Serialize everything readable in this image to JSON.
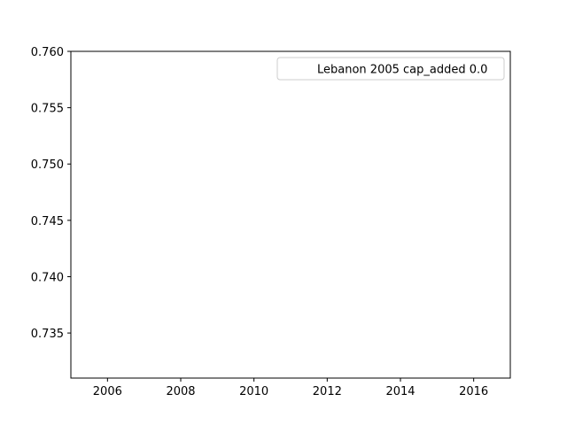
{
  "chart_data": {
    "type": "line",
    "title": "",
    "xlabel": "",
    "ylabel": "",
    "xlim": [
      2005,
      2017
    ],
    "ylim": [
      0.731,
      0.76
    ],
    "x_ticks": [
      2006,
      2008,
      2010,
      2012,
      2014,
      2016
    ],
    "y_ticks": [
      0.735,
      0.74,
      0.745,
      0.75,
      0.755,
      0.76
    ],
    "y_tick_labels": [
      "0.735",
      "0.740",
      "0.745",
      "0.750",
      "0.755",
      "0.760"
    ],
    "grid": false,
    "legend_position": "top-right",
    "series": [
      {
        "name": "Lebanon 2005 cap_added 0.0",
        "x": [],
        "y": [],
        "color": "#ffffff"
      }
    ]
  }
}
